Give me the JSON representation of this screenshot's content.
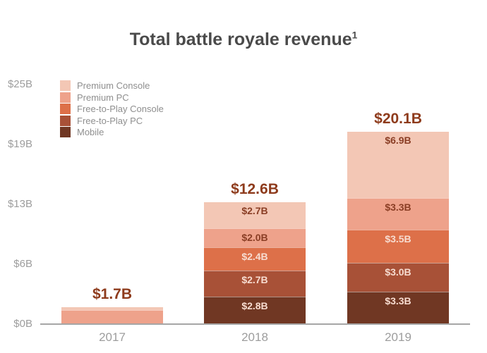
{
  "chart_data": {
    "type": "bar",
    "stacked": true,
    "title": "Total battle royale revenue",
    "title_footnote_marker": "1",
    "categories": [
      "2017",
      "2018",
      "2019"
    ],
    "series": [
      {
        "name": "Premium Console",
        "color": "#f3c7b5",
        "label_color": "#8a3e25",
        "values": [
          0.3,
          2.7,
          6.9
        ],
        "data_labels": [
          "",
          "$2.7B",
          "$6.9B"
        ]
      },
      {
        "name": "Premium PC",
        "color": "#eea28b",
        "label_color": "#8a3e25",
        "values": [
          1.4,
          2.0,
          3.3
        ],
        "data_labels": [
          "",
          "$2.0B",
          "$3.3B"
        ]
      },
      {
        "name": "Free-to-Play Console",
        "color": "#dd7049",
        "label_color": "#f7dcd0",
        "values": [
          0,
          2.4,
          3.5
        ],
        "data_labels": [
          "",
          "$2.4B",
          "$3.5B"
        ]
      },
      {
        "name": "Free-to-Play PC",
        "color": "#a85137",
        "label_color": "#f7dcd0",
        "values": [
          0,
          2.7,
          3.0
        ],
        "data_labels": [
          "",
          "$2.7B",
          "$3.0B"
        ]
      },
      {
        "name": "Mobile",
        "color": "#703723",
        "label_color": "#f7dcd0",
        "values": [
          0,
          2.8,
          3.3
        ],
        "data_labels": [
          "",
          "$2.8B",
          "$3.3B"
        ]
      }
    ],
    "totals": [
      {
        "category": "2017",
        "label": "$1.7B",
        "value": 1.7
      },
      {
        "category": "2018",
        "label": "$12.6B",
        "value": 12.6
      },
      {
        "category": "2019",
        "label": "$20.1B",
        "value": 20.1
      }
    ],
    "y_axis": {
      "ticks": [
        "$25B",
        "$19B",
        "$13B",
        "$6B",
        "$0B"
      ],
      "tick_values": [
        25,
        18.75,
        12.5,
        6.25,
        0
      ],
      "range": [
        0,
        25
      ]
    },
    "legend_position": "top-left",
    "grid": false
  },
  "colors": {
    "title_text": "#4a4a4a",
    "axis_text": "#9d9d9d",
    "legend_text": "#8f8f8f",
    "axis_line": "#a6a6a6",
    "total_label": "#8e3b1c"
  }
}
